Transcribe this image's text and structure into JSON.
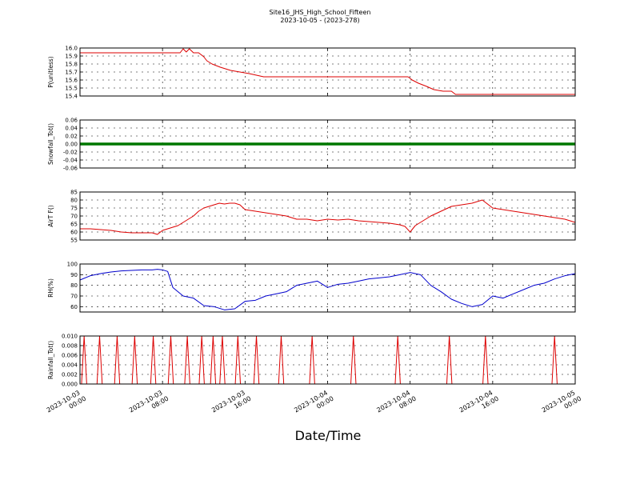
{
  "title": "Site16_JHS_High_School_Fifteen",
  "subtitle": "2023-10-05 - (2023-278)",
  "xlabel": "Date/Time",
  "x_ticks": [
    "2023-10-03\n00:00",
    "2023-10-03\n08:00",
    "2023-10-03\n16:00",
    "2023-10-04\n00:00",
    "2023-10-04\n08:00",
    "2023-10-04\n16:00",
    "2023-10-05\n00:00"
  ],
  "chart_data": [
    {
      "type": "line",
      "ylabel": "P(unitless)",
      "ylim": [
        15.4,
        16.0
      ],
      "yticks": [
        "15.4",
        "15.5",
        "15.6",
        "15.7",
        "15.8",
        "15.9",
        "16.0"
      ],
      "color": "#dd0000",
      "x": [
        0,
        2,
        4,
        6,
        8,
        9.7,
        10,
        10.3,
        10.6,
        11,
        11.5,
        12,
        12.3,
        12.8,
        13.6,
        14.6,
        16.4,
        17.8,
        20,
        24,
        28,
        31.8,
        32.2,
        32.8,
        33.6,
        34.3,
        35.2,
        36,
        36.4,
        37.2,
        40,
        48
      ],
      "values": [
        15.94,
        15.94,
        15.94,
        15.94,
        15.94,
        15.94,
        15.99,
        15.95,
        15.99,
        15.94,
        15.94,
        15.89,
        15.84,
        15.8,
        15.76,
        15.72,
        15.68,
        15.64,
        15.64,
        15.64,
        15.64,
        15.64,
        15.6,
        15.56,
        15.52,
        15.48,
        15.46,
        15.46,
        15.42,
        15.42,
        15.42,
        15.42
      ]
    },
    {
      "type": "line",
      "ylabel": "Snowfall_Tot()",
      "ylim": [
        -0.06,
        0.06
      ],
      "yticks": [
        "-0.06",
        "-0.04",
        "-0.02",
        "0.00",
        "0.02",
        "0.04",
        "0.06"
      ],
      "color": "#007700",
      "x": [
        0,
        48
      ],
      "values": [
        0,
        0
      ]
    },
    {
      "type": "line",
      "ylabel": "AirT F()",
      "ylim": [
        55,
        85
      ],
      "yticks": [
        "55",
        "60",
        "65",
        "70",
        "75",
        "80",
        "85"
      ],
      "color": "#dd0000",
      "x": [
        0,
        1,
        2,
        3,
        4,
        5,
        6,
        7,
        7.5,
        8,
        8.5,
        9,
        9.5,
        10,
        10.5,
        11,
        11.5,
        12,
        12.5,
        13,
        13.5,
        14,
        14.5,
        15,
        15.5,
        16,
        17,
        18,
        19,
        20,
        21,
        22,
        23,
        24,
        25,
        26,
        27,
        28,
        29,
        30,
        31,
        31.5,
        32,
        32.5,
        33,
        34,
        35,
        36,
        37,
        38,
        39,
        40,
        41,
        42,
        43,
        44,
        45,
        46,
        47,
        48
      ],
      "values": [
        62,
        62,
        61.5,
        61,
        60,
        59.5,
        59.5,
        59.5,
        58.5,
        61,
        62,
        63,
        64,
        66,
        68,
        70,
        73,
        75,
        76,
        77,
        78,
        77.5,
        78,
        78,
        77,
        74,
        73,
        72,
        71,
        70,
        68,
        68,
        67,
        68,
        67.5,
        68,
        67,
        66.5,
        66,
        65.5,
        64.5,
        63.5,
        60,
        64,
        66,
        70,
        73,
        76,
        77,
        78,
        80,
        75,
        74,
        73,
        72,
        71,
        70,
        69,
        68,
        66
      ]
    },
    {
      "type": "line",
      "ylabel": "RH(%)",
      "ylim": [
        55,
        100
      ],
      "yticks": [
        "60",
        "70",
        "80",
        "90",
        "100"
      ],
      "color": "#0000cc",
      "x": [
        0,
        1,
        2,
        3,
        4,
        5,
        6,
        7,
        7.5,
        8,
        8.5,
        9,
        10,
        11,
        12,
        13,
        14,
        15,
        16,
        17,
        18,
        19,
        20,
        21,
        22,
        23,
        24,
        25,
        26,
        27,
        28,
        29,
        30,
        31,
        32,
        33,
        34,
        35,
        36,
        37,
        38,
        39,
        40,
        41,
        42,
        43,
        44,
        45,
        46,
        47,
        48
      ],
      "values": [
        85,
        89,
        91,
        92.5,
        93.5,
        94,
        94.5,
        94.5,
        95,
        94.5,
        93,
        78,
        70,
        68,
        61,
        60,
        57,
        58,
        65,
        66,
        70,
        72,
        74,
        80,
        82,
        84,
        78,
        81,
        82,
        84,
        86,
        87,
        88,
        90,
        92,
        90,
        80,
        74,
        67,
        63,
        60,
        62,
        70,
        68,
        72,
        76,
        80,
        82,
        86,
        89,
        91
      ]
    },
    {
      "type": "line",
      "ylabel": "Rainfall_Tot()",
      "ylim": [
        0,
        0.01
      ],
      "yticks": [
        "0.000",
        "0.002",
        "0.004",
        "0.006",
        "0.008",
        "0.010"
      ],
      "color": "#dd0000",
      "spikes_x": [
        0.4,
        1.9,
        3.6,
        5.3,
        7.1,
        8.8,
        10.4,
        11.8,
        12.9,
        13.8,
        15.3,
        17.1,
        19.5,
        22.5,
        26.5,
        30.8,
        35.8,
        39.3,
        46
      ],
      "peak": 0.01
    }
  ]
}
